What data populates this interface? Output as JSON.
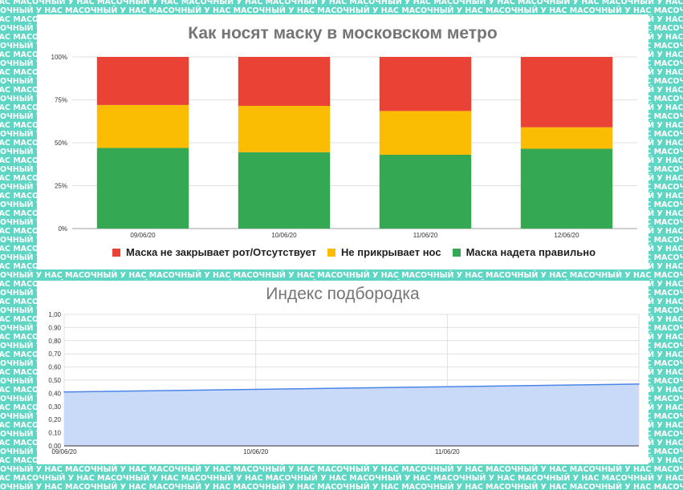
{
  "background": {
    "pattern_text": "У НАС МАСОЧНЫЙ",
    "pattern_color": "#5fd6c3"
  },
  "chart_data": [
    {
      "type": "bar",
      "stacked": true,
      "title": "Как носят маску в московском метро",
      "categories": [
        "09/06/20",
        "10/06/20",
        "11/06/20",
        "12/06/20"
      ],
      "series": [
        {
          "name": "Маска надета правильно",
          "color": "#34a853",
          "values": [
            47,
            44.5,
            43,
            46.5
          ]
        },
        {
          "name": "Не прикрывает нос",
          "color": "#fbbc04",
          "values": [
            25,
            27,
            25.5,
            12.5
          ]
        },
        {
          "name": "Маска не закрывает рот/Отсутствует",
          "color": "#ea4335",
          "values": [
            28,
            28.5,
            31.5,
            41
          ]
        }
      ],
      "legend_order": [
        2,
        1,
        0
      ],
      "legend_position": "bottom",
      "ylim": [
        0,
        100
      ],
      "yticks": [
        "0%",
        "25%",
        "50%",
        "75%",
        "100%"
      ],
      "grid": true
    },
    {
      "type": "area",
      "title": "Индекс подбородка",
      "x": [
        "09/06/20",
        "10/06/20",
        "11/06/20",
        "12/06/20"
      ],
      "xtick_labels": [
        "09/06/20",
        "10/06/20",
        "11/06/20"
      ],
      "values": [
        0.41,
        0.43,
        0.45,
        0.47
      ],
      "color": "#4a86e8",
      "fill": "#c9daf8",
      "ylim": [
        0,
        1
      ],
      "yticks": [
        "0,00",
        "0,10",
        "0,20",
        "0,30",
        "0,40",
        "0,50",
        "0,60",
        "0,70",
        "0,80",
        "0,90",
        "1,00"
      ],
      "grid": true
    }
  ]
}
